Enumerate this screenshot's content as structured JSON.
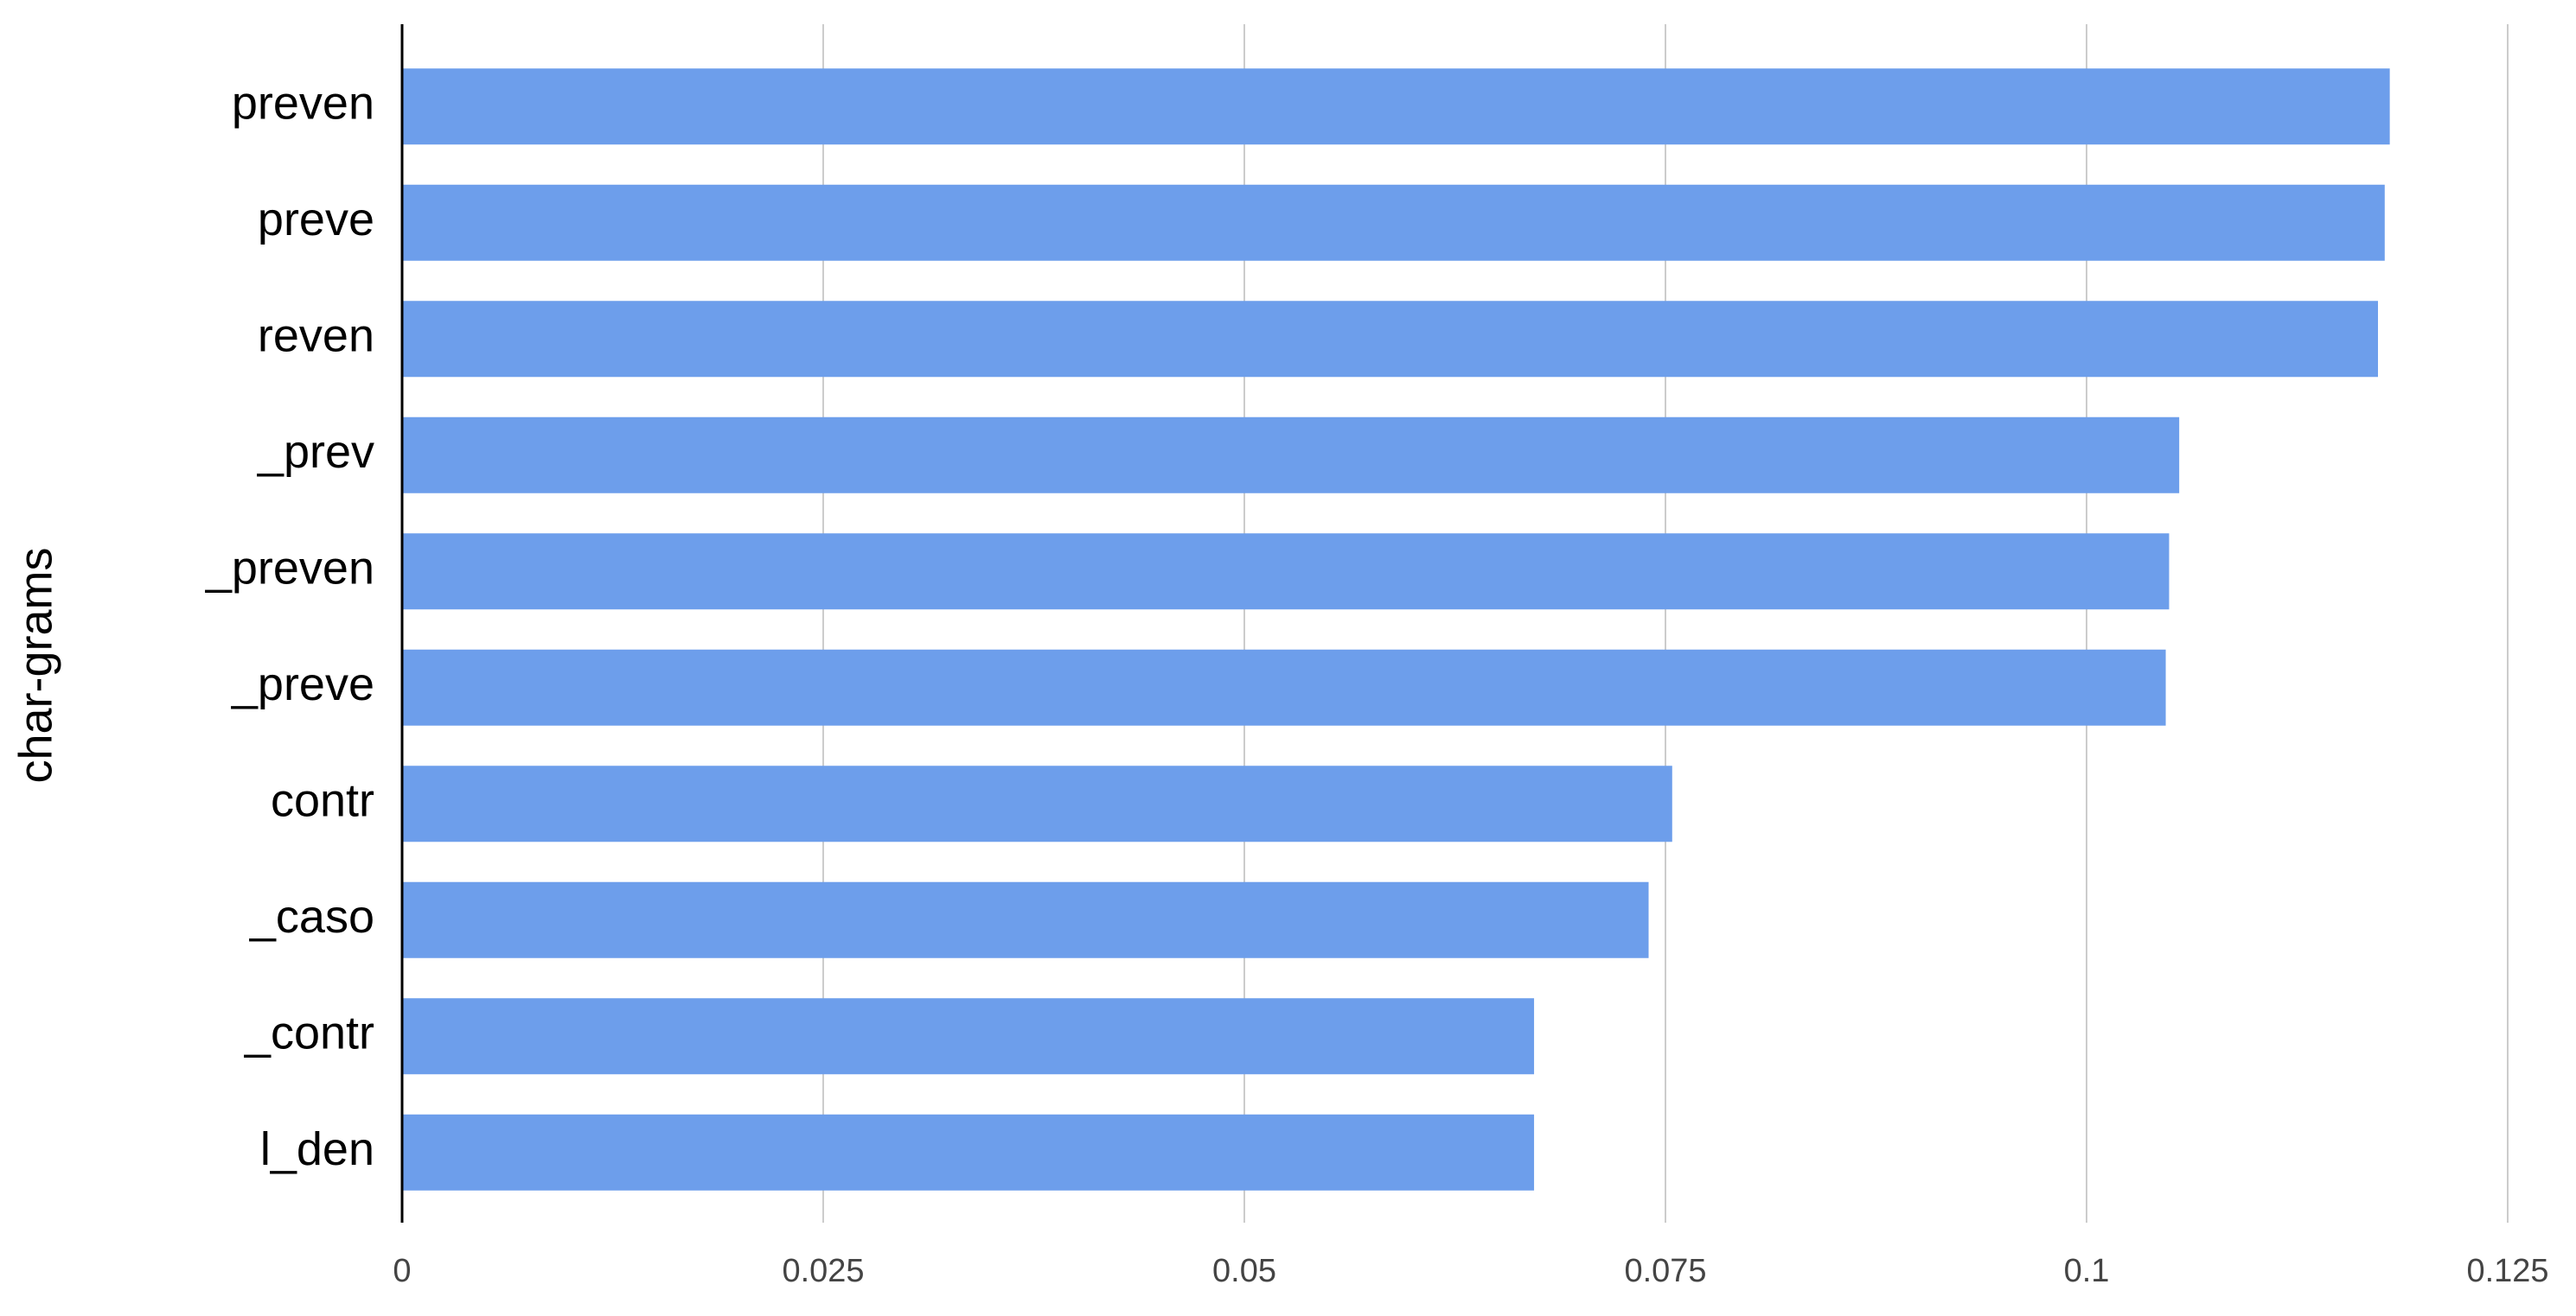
{
  "chart_data": {
    "type": "hbar",
    "y_label": "char-grams",
    "categories": [
      "preven",
      "preve",
      "reven",
      "_prev",
      "_preven",
      "_preve",
      "contr",
      "_caso",
      "_contr",
      "l_den"
    ],
    "values": [
      0.118,
      0.1177,
      0.1173,
      0.1055,
      0.1049,
      0.1047,
      0.0754,
      0.074,
      0.0672,
      0.0672
    ],
    "color": "#6d9eeb",
    "xlim": [
      0,
      0.125
    ],
    "xticks": [
      0,
      0.025,
      0.05,
      0.075,
      0.1,
      0.125
    ],
    "grid": true
  }
}
